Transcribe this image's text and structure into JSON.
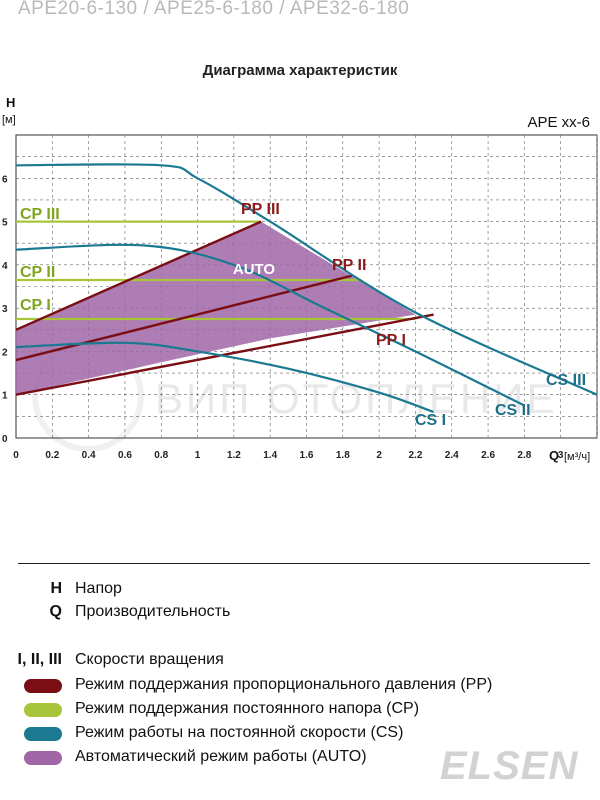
{
  "header": {
    "models": "APE20-6-130 / APE25-6-180 / APE32-6-180",
    "title": "Диаграмма характеристик"
  },
  "watermark": "ВИП ОТОПЛЕНИЕ",
  "brand": "ELSEN",
  "legend": [
    {
      "key": "H",
      "text": "Напор",
      "swatch": null
    },
    {
      "key": "Q",
      "text": "Производительность",
      "swatch": null
    },
    {
      "key": "I, II, III",
      "text": "Скорости вращения",
      "swatch": null
    },
    {
      "key": "",
      "text": "Режим поддержания пропорционального давления (PP)",
      "swatch": "#7a0e14"
    },
    {
      "key": "",
      "text": "Режим поддержания постоянного напора (CP)",
      "swatch": "#a8c43a"
    },
    {
      "key": "",
      "text": "Режим работы на постоянной скорости (CS)",
      "swatch": "#1b7a92"
    },
    {
      "key": "",
      "text": "Автоматический режим работы (AUTO)",
      "swatch": "#a066a6"
    }
  ],
  "chart_data": {
    "type": "line",
    "title": "APE xx-6",
    "ylabel": "H",
    "yunit": "[м]",
    "xlabel": "Q",
    "xunit": "[м³/ч]",
    "xlim": [
      0,
      3.2
    ],
    "ylim": [
      0,
      7
    ],
    "x_ticks": [
      "0",
      "0.2",
      "0.4",
      "0.6",
      "0.8",
      "1",
      "1.2",
      "1.4",
      "1.6",
      "1.8",
      "2",
      "2.2",
      "2.4",
      "2.6",
      "2.8",
      "3"
    ],
    "x_tick_values": [
      0,
      0.2,
      0.4,
      0.6,
      0.8,
      1.0,
      1.2,
      1.4,
      1.6,
      1.8,
      2.0,
      2.2,
      2.4,
      2.6,
      2.8,
      3.0
    ],
    "y_ticks": [
      "0",
      "1",
      "2",
      "3",
      "4",
      "5",
      "6"
    ],
    "y_tick_values": [
      0,
      1,
      2,
      3,
      4,
      5,
      6
    ],
    "grid": true,
    "colors": {
      "pp": "#7a0e14",
      "cp": "#a8c43a",
      "cs": "#1b7a92",
      "auto": "#a066a6",
      "pp_label": "#8b1a1a",
      "cs_label": "#1b6f86",
      "cp_label": "#7fa51f"
    },
    "auto_label": "AUTO",
    "auto_area": [
      [
        0,
        1.0
      ],
      [
        0,
        2.5
      ],
      [
        0.8,
        4.0
      ],
      [
        1.35,
        5.0
      ],
      [
        2.2,
        2.85
      ],
      [
        1.4,
        2.3
      ],
      [
        0.8,
        1.75
      ]
    ],
    "cs_series": [
      {
        "name": "CS III",
        "points": [
          [
            0,
            6.3
          ],
          [
            0.8,
            6.3
          ],
          [
            1.0,
            6.0
          ],
          [
            1.4,
            5.0
          ],
          [
            2.2,
            2.9
          ],
          [
            3.2,
            1.0
          ]
        ]
      },
      {
        "name": "CS II",
        "points": [
          [
            0,
            4.35
          ],
          [
            0.7,
            4.45
          ],
          [
            1.2,
            4.0
          ],
          [
            1.7,
            3.0
          ],
          [
            2.2,
            2.0
          ],
          [
            2.8,
            0.75
          ]
        ]
      },
      {
        "name": "CS I",
        "points": [
          [
            0,
            2.1
          ],
          [
            0.6,
            2.2
          ],
          [
            1.0,
            2.0
          ],
          [
            1.5,
            1.6
          ],
          [
            2.0,
            1.05
          ],
          [
            2.3,
            0.6
          ]
        ]
      }
    ],
    "pp_series": [
      {
        "name": "PP III",
        "points": [
          [
            0,
            2.5
          ],
          [
            1.35,
            5.0
          ]
        ]
      },
      {
        "name": "PP II",
        "points": [
          [
            0,
            1.8
          ],
          [
            1.85,
            3.75
          ]
        ]
      },
      {
        "name": "PP I",
        "points": [
          [
            0,
            1.0
          ],
          [
            2.3,
            2.85
          ]
        ]
      }
    ],
    "cp_series": [
      {
        "name": "CP III",
        "points": [
          [
            0,
            5.0
          ],
          [
            1.35,
            5.0
          ]
        ]
      },
      {
        "name": "CP II",
        "points": [
          [
            0,
            3.65
          ],
          [
            1.9,
            3.65
          ]
        ]
      },
      {
        "name": "CP I",
        "points": [
          [
            0,
            2.75
          ],
          [
            2.2,
            2.75
          ]
        ]
      }
    ]
  }
}
